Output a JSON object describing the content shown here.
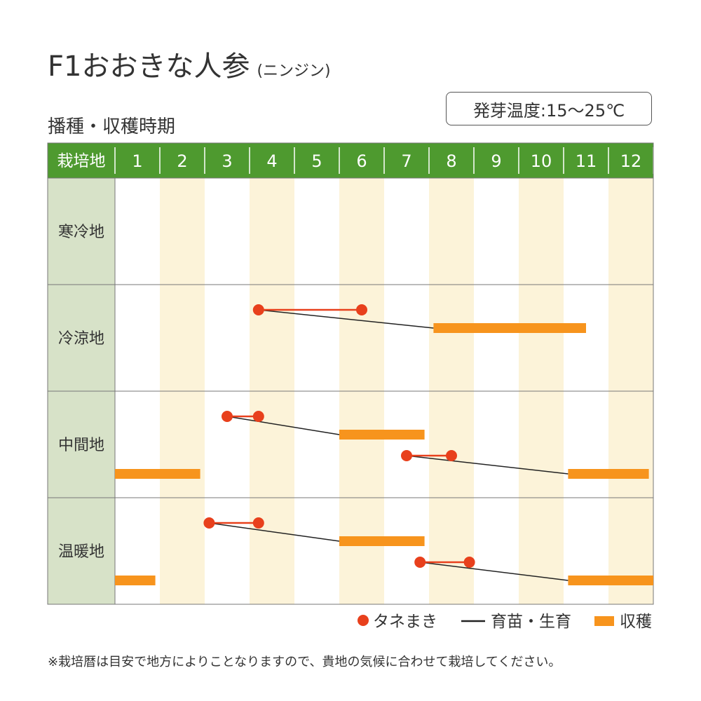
{
  "title": "F1おおきな人参",
  "title_sub": "(ニンジン)",
  "subtitle": "播種・収穫時期",
  "temperature": "発芽温度:15〜25℃",
  "note": "※栽培暦は目安で地方によりことなりますので、貴地の気候に合わせて栽培してください。",
  "colors": {
    "header_green": "#4e9a2f",
    "row_label_bg": "#d7e2c8",
    "stripe": "#fcf3d9",
    "sowing": "#e8401c",
    "harvest": "#f7941d",
    "growing": "#222222"
  },
  "chart_data": {
    "type": "gantt",
    "header_label": "栽培地",
    "months": [
      "1",
      "2",
      "3",
      "4",
      "5",
      "6",
      "7",
      "8",
      "9",
      "10",
      "11",
      "12"
    ],
    "regions": [
      {
        "name": "寒冷地",
        "periods": []
      },
      {
        "name": "冷涼地",
        "periods": [
          {
            "sow": [
              4.2,
              6.5
            ],
            "harvest": [
              8.1,
              11.5
            ],
            "lane": 0
          }
        ]
      },
      {
        "name": "中間地",
        "periods": [
          {
            "sow": [
              3.5,
              4.2
            ],
            "harvest": [
              6.0,
              7.9
            ],
            "lane": 0
          },
          {
            "sow": [
              7.5,
              8.5
            ],
            "harvest": [
              11.1,
              12.9
            ],
            "lane": 1
          },
          {
            "harvest": [
              1.0,
              2.9
            ],
            "lane": 1
          }
        ]
      },
      {
        "name": "温暖地",
        "periods": [
          {
            "sow": [
              3.1,
              4.2
            ],
            "harvest": [
              6.0,
              7.9
            ],
            "lane": 0
          },
          {
            "sow": [
              7.8,
              8.9
            ],
            "harvest": [
              11.1,
              13.0
            ],
            "lane": 1
          },
          {
            "harvest": [
              1.0,
              1.9
            ],
            "lane": 1
          }
        ]
      }
    ],
    "legend": [
      {
        "key": "sow",
        "label": "タネまき"
      },
      {
        "key": "grow",
        "label": "育苗・生育"
      },
      {
        "key": "harvest",
        "label": "収穫"
      }
    ]
  }
}
